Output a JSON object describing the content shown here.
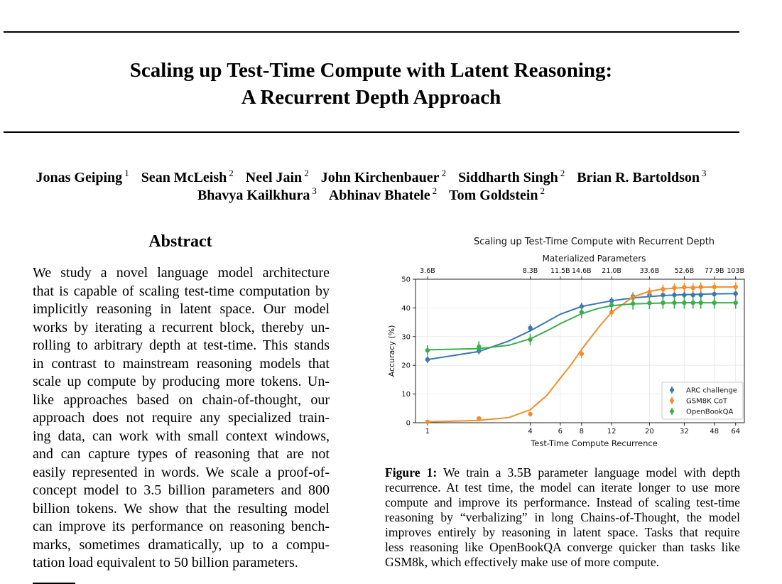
{
  "paper": {
    "title_line1": "Scaling up Test-Time Compute with Latent Reasoning:",
    "title_line2": "A Recurrent Depth Approach",
    "authors_line1": [
      {
        "name": "Jonas Geiping",
        "affil": "1"
      },
      {
        "name": "Sean McLeish",
        "affil": "2"
      },
      {
        "name": "Neel Jain",
        "affil": "2"
      },
      {
        "name": "John Kirchenbauer",
        "affil": "2"
      },
      {
        "name": "Siddharth Singh",
        "affil": "2"
      },
      {
        "name": "Brian R. Bartoldson",
        "affil": "3"
      }
    ],
    "authors_line2": [
      {
        "name": "Bhavya Kailkhura",
        "affil": "3"
      },
      {
        "name": "Abhinav Bhatele",
        "affil": "2"
      },
      {
        "name": "Tom Goldstein",
        "affil": "2"
      }
    ],
    "abstract_heading": "Abstract",
    "abstract_lines": [
      "We study a novel language model architecture",
      "that is capable of scaling test-time computation by",
      "implicitly reasoning in latent space.  Our model",
      "works by iterating a recurrent block, thereby un-",
      "rolling to arbitrary depth at test-time. This stands",
      "in contrast to mainstream reasoning models that",
      "scale up compute by producing more tokens. Un-",
      "like approaches based on chain-of-thought, our",
      "approach does not require any specialized train-",
      "ing data, can work with small context windows,",
      "and can capture types of reasoning that are not",
      "easily represented in words. We scale a proof-of-",
      "concept model to 3.5 billion parameters and 800",
      "billion tokens. We show that the resulting model",
      "can improve its performance on reasoning bench-",
      "marks, sometimes dramatically, up to a compu-",
      "tation load equivalent to 50 billion parameters."
    ],
    "caption_label": "Figure 1:",
    "caption_lines": [
      " We train a 3.5B parameter language model with depth",
      "recurrence. At test time, the model can iterate longer to use more",
      "compute and improve its performance. Instead of scaling test-time",
      "reasoning by “verbalizing” in long Chains-of-Thought, the model",
      "improves entirely by reasoning in latent space. Tasks that require",
      "less reasoning like OpenBookQA converge quicker than tasks like",
      "GSM8k, which effectively make use of more compute."
    ]
  },
  "chart_data": {
    "type": "line",
    "title": "Scaling up Test-Time Compute with Recurrent Depth",
    "xlabel": "Test-Time Compute Recurrence",
    "ylabel": "Accuracy (%)",
    "x_scale": "log",
    "xlim": [
      0.85,
      72
    ],
    "ylim": [
      0,
      50
    ],
    "x_ticks": [
      1,
      4,
      6,
      8,
      12,
      20,
      32,
      48,
      64
    ],
    "y_ticks": [
      0,
      10,
      20,
      30,
      40,
      50
    ],
    "secondary_xlabel": "Materialized Parameters",
    "secondary_ticks": [
      {
        "x": 1,
        "label": "3.6B"
      },
      {
        "x": 4,
        "label": "8.3B"
      },
      {
        "x": 6,
        "label": "11.5B"
      },
      {
        "x": 8,
        "label": "14.6B"
      },
      {
        "x": 12,
        "label": "21.0B"
      },
      {
        "x": 20,
        "label": "33.6B"
      },
      {
        "x": 32,
        "label": "52.6B"
      },
      {
        "x": 48,
        "label": "77.9B"
      },
      {
        "x": 64,
        "label": "103B"
      }
    ],
    "grid": true,
    "legend_position": "bottom-right",
    "series": [
      {
        "name": "ARC challenge",
        "color": "#3a78b0",
        "x": [
          1,
          2,
          4,
          8,
          12,
          16,
          20,
          24,
          28,
          32,
          36,
          40,
          48,
          64
        ],
        "y": [
          22,
          25,
          33,
          40.5,
          42.5,
          44,
          44.5,
          44.5,
          44.5,
          44.5,
          44.5,
          44.5,
          44.8,
          45
        ],
        "err": [
          1.2,
          1.2,
          1.3,
          1.3,
          1.3,
          1.4,
          1.4,
          1.4,
          1.4,
          1.4,
          1.4,
          1.4,
          1.4,
          1.4
        ],
        "fit_x": [
          1,
          2,
          3,
          4,
          6,
          8,
          12,
          16,
          24,
          32,
          48,
          64
        ],
        "fit_y": [
          22,
          24.8,
          28.5,
          32,
          37.8,
          40.5,
          42.5,
          43.5,
          44.3,
          44.6,
          44.9,
          45
        ]
      },
      {
        "name": "GSM8K CoT",
        "color": "#f28e2b",
        "x": [
          1,
          2,
          4,
          8,
          12,
          16,
          20,
          24,
          28,
          32,
          36,
          40,
          48,
          64
        ],
        "y": [
          0.3,
          1.5,
          3,
          24,
          38.5,
          43.5,
          45.5,
          46.5,
          47,
          47.2,
          47,
          47.3,
          47.3,
          47.3
        ],
        "err": [
          0.3,
          0.5,
          0.8,
          1.5,
          1.6,
          1.6,
          1.6,
          1.6,
          1.6,
          1.6,
          1.6,
          1.6,
          1.6,
          1.6
        ],
        "fit_x": [
          1,
          2,
          3,
          4,
          5,
          6,
          7,
          8,
          10,
          12,
          16,
          20,
          24,
          32,
          48,
          64
        ],
        "fit_y": [
          0.3,
          0.8,
          1.8,
          4.5,
          9.5,
          15.5,
          20.5,
          25.5,
          33,
          38.5,
          43.8,
          45.8,
          46.6,
          47.1,
          47.3,
          47.3
        ]
      },
      {
        "name": "OpenBookQA",
        "color": "#3cad4b",
        "x": [
          1,
          2,
          4,
          8,
          12,
          16,
          20,
          24,
          28,
          32,
          36,
          40,
          48,
          64
        ],
        "y": [
          25.2,
          26.5,
          29,
          38.5,
          41,
          41.5,
          41.7,
          41.8,
          41.8,
          41.8,
          41.8,
          41.8,
          41.8,
          41.8
        ],
        "err": [
          1.8,
          1.9,
          2.0,
          2.1,
          2.1,
          2.1,
          2.1,
          2.1,
          2.1,
          2.1,
          2.1,
          2.1,
          2.1,
          2.1
        ],
        "fit_x": [
          1,
          2,
          3,
          4,
          5,
          6,
          8,
          10,
          12,
          16,
          24,
          32,
          48,
          64
        ],
        "fit_y": [
          25.4,
          25.8,
          27,
          29.2,
          32,
          34.5,
          38,
          39.8,
          40.8,
          41.4,
          41.7,
          41.8,
          41.8,
          41.8
        ]
      }
    ]
  }
}
